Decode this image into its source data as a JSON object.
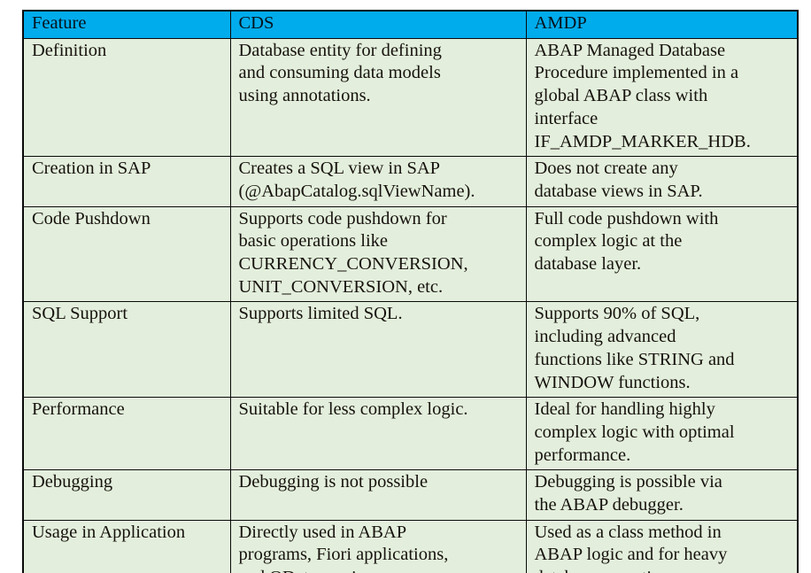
{
  "colors": {
    "header_bg": "#00ACEC",
    "body_bg": "#E3EFDC",
    "border": "#0A0A0A",
    "header_text": "#06121C",
    "body_text": "#17120E"
  },
  "table": {
    "columns": [
      "Feature",
      "CDS",
      "AMDP"
    ],
    "rows": [
      {
        "feature": "Definition",
        "cds": "Database entity for defining\nand consuming data models\nusing annotations.",
        "amdp": "ABAP Managed Database\nProcedure implemented in a\nglobal ABAP class with\ninterface\nIF_AMDP_MARKER_HDB."
      },
      {
        "feature": "Creation in SAP",
        "cds": "Creates a SQL view in SAP\n(@AbapCatalog.sqlViewName).",
        "amdp": "Does not create any\ndatabase views in SAP."
      },
      {
        "feature": "Code Pushdown",
        "cds": "Supports code pushdown for\nbasic operations like\nCURRENCY_CONVERSION,\nUNIT_CONVERSION, etc.",
        "amdp": "Full code pushdown with\ncomplex logic at the\ndatabase layer."
      },
      {
        "feature": "SQL Support",
        "cds": "Supports limited SQL.",
        "amdp": "Supports 90% of SQL,\nincluding advanced\nfunctions like STRING and\nWINDOW functions."
      },
      {
        "feature": "Performance",
        "cds": "Suitable for less complex logic.",
        "amdp": "Ideal for handling highly\ncomplex logic with optimal\nperformance."
      },
      {
        "feature": "Debugging",
        "cds": "Debugging is not possible",
        "amdp": "Debugging is possible via\nthe ABAP debugger."
      },
      {
        "feature": "Usage in Application",
        "cds": "Directly used in ABAP\nprograms, Fiori applications,\nand OData services.",
        "amdp": "Used as a class method in\nABAP logic and for heavy\ndatabase operations."
      }
    ]
  }
}
